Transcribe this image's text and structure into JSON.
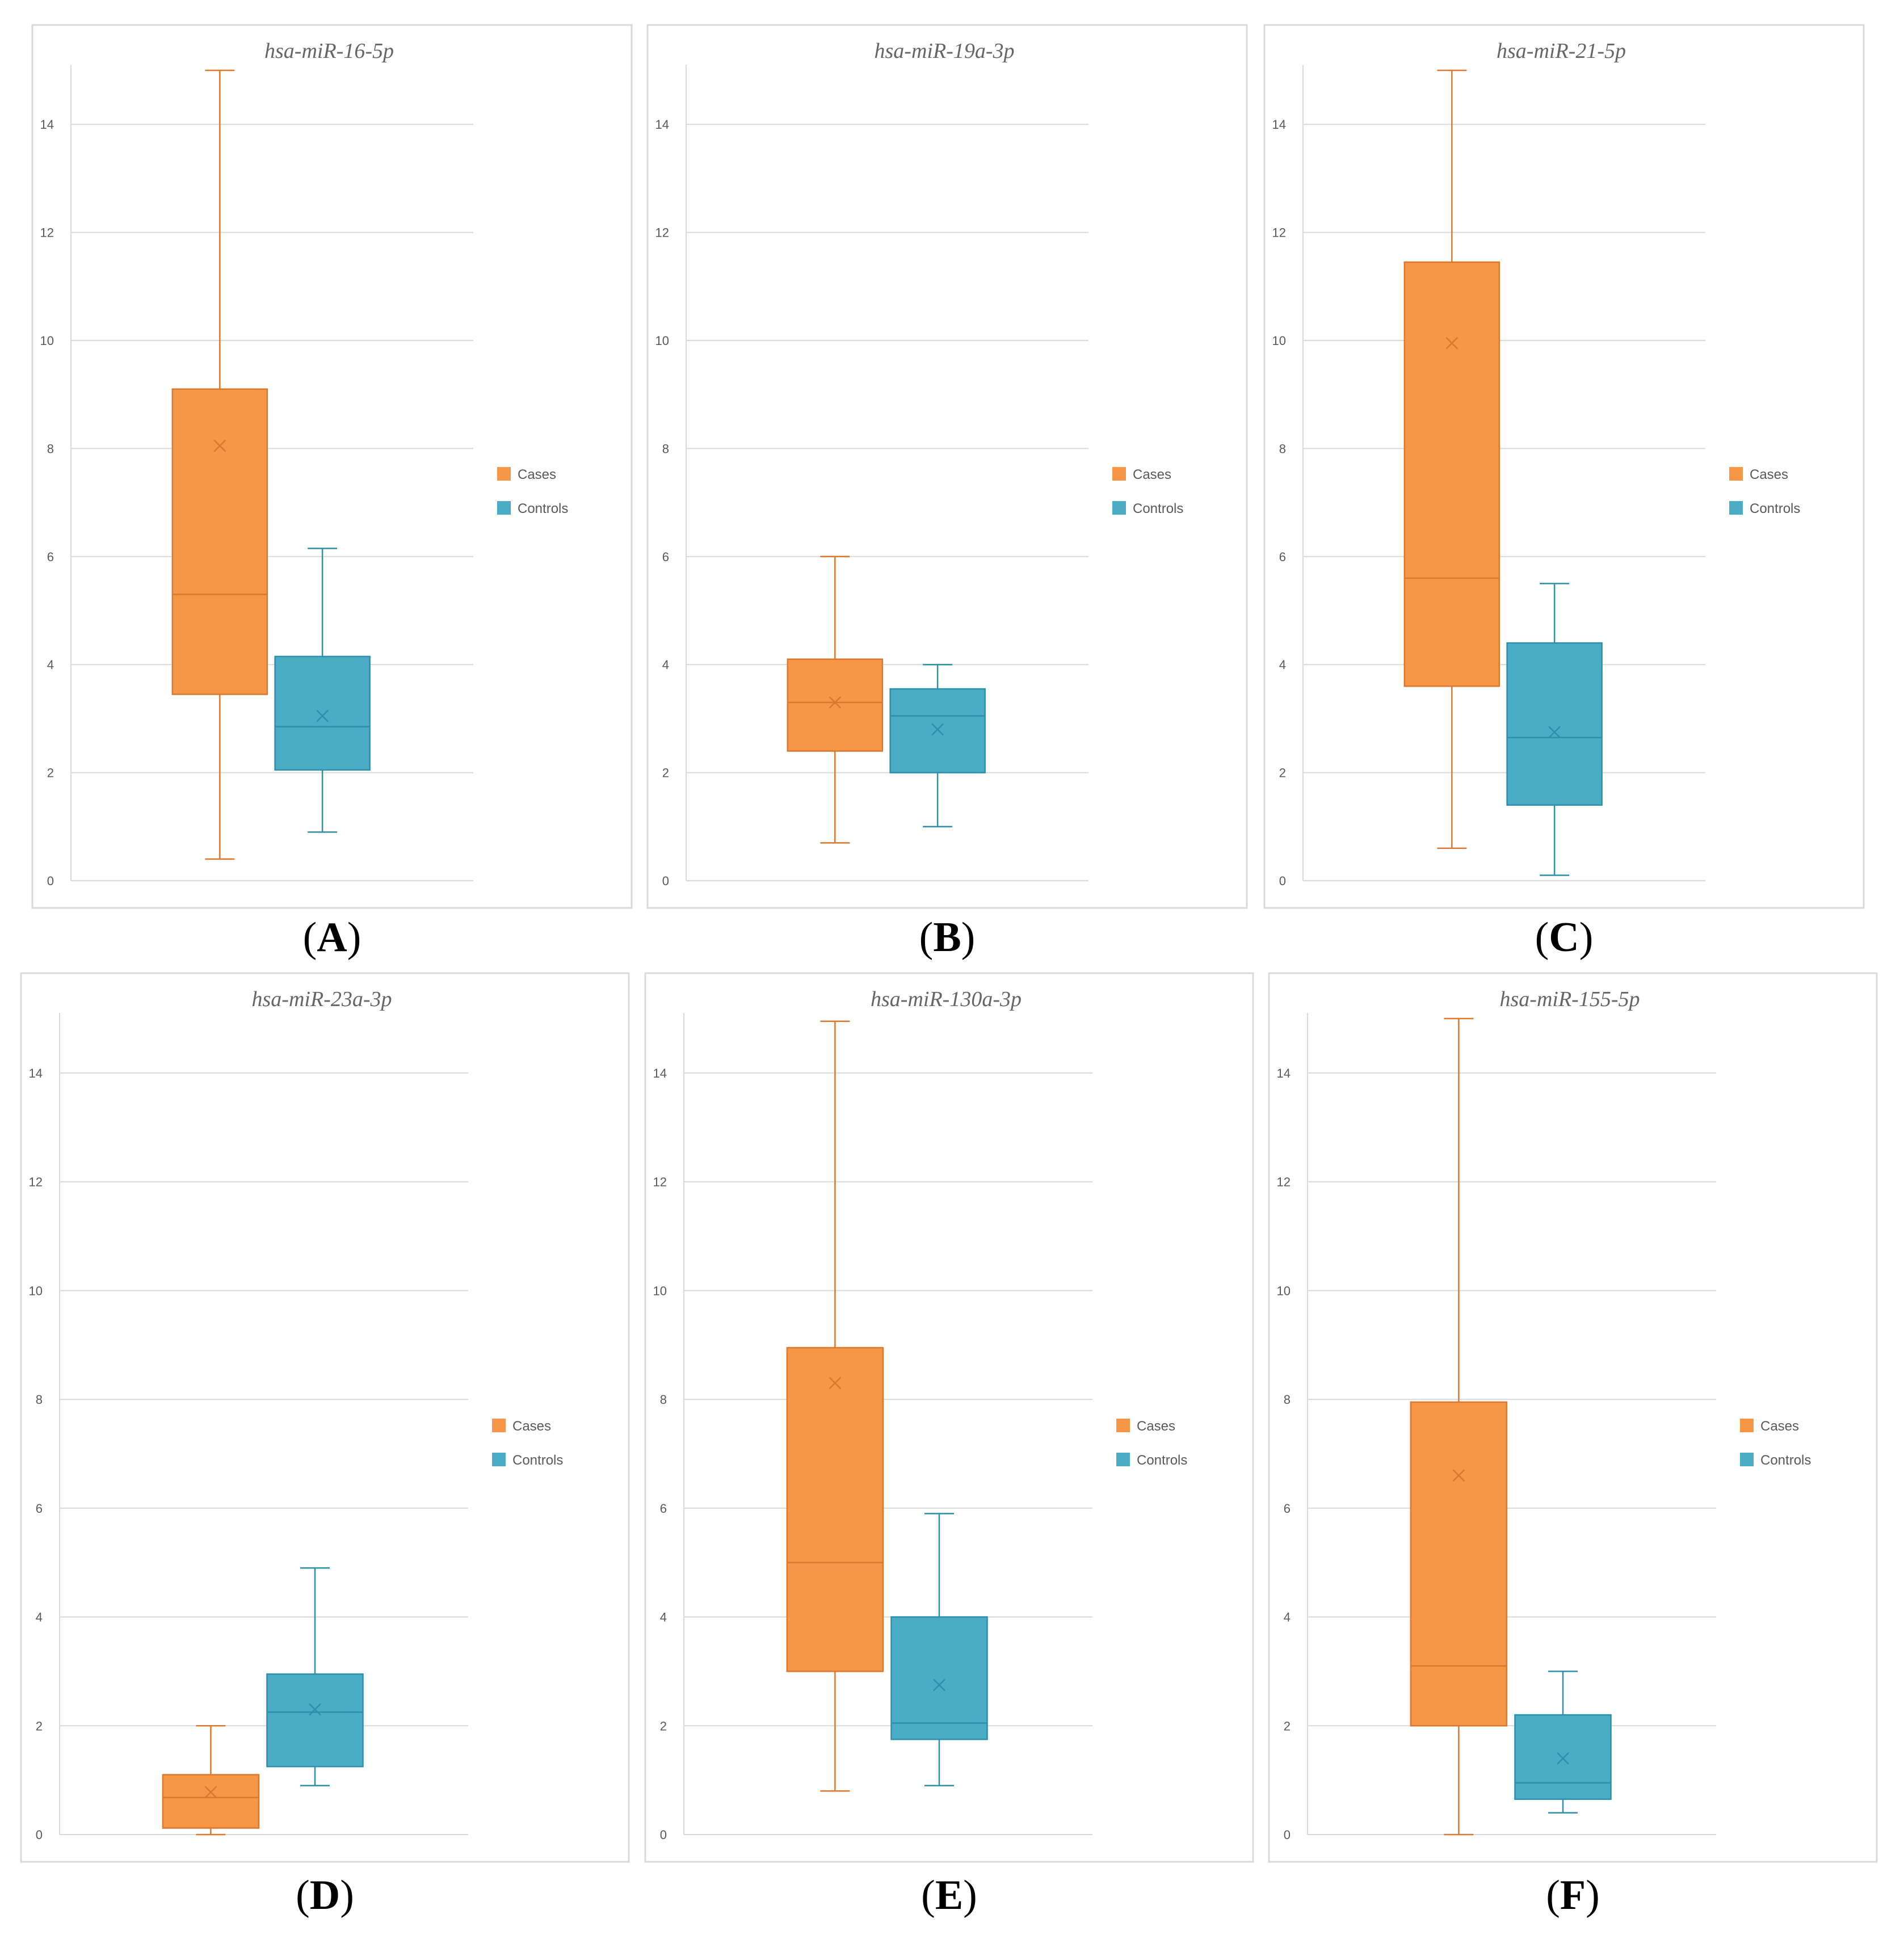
{
  "colors": {
    "cases": "#F79646",
    "cases_stroke": "#D9782E",
    "controls": "#4BACC6",
    "controls_stroke": "#2E8FAA",
    "grid": "#D9D9D9",
    "frame": "#D9D9D9"
  },
  "chart_data": [
    {
      "panel": "A",
      "type": "box",
      "title": "hsa-miR-16-5p",
      "yticks": [
        "0",
        "2",
        "4",
        "6",
        "8",
        "10",
        "12",
        "14"
      ],
      "ylim": [
        0,
        15
      ],
      "legend": [
        "Cases",
        "Controls"
      ],
      "legend_position": "right",
      "grid": true,
      "series": [
        {
          "name": "Cases",
          "min": 0.4,
          "q1": 3.45,
          "median": 5.3,
          "q3": 9.1,
          "max": 15.0,
          "mean": 8.05
        },
        {
          "name": "Controls",
          "min": 0.9,
          "q1": 2.05,
          "median": 2.85,
          "q3": 4.15,
          "max": 6.15,
          "mean": 3.05
        }
      ]
    },
    {
      "panel": "B",
      "type": "box",
      "title": "hsa-miR-19a-3p",
      "yticks": [
        "0",
        "2",
        "4",
        "6",
        "8",
        "10",
        "12",
        "14"
      ],
      "ylim": [
        0,
        15
      ],
      "legend": [
        "Cases",
        "Controls"
      ],
      "legend_position": "right",
      "grid": true,
      "series": [
        {
          "name": "Cases",
          "min": 0.7,
          "q1": 2.4,
          "median": 3.3,
          "q3": 4.1,
          "max": 6.0,
          "mean": 3.3
        },
        {
          "name": "Controls",
          "min": 1.0,
          "q1": 2.0,
          "median": 3.05,
          "q3": 3.55,
          "max": 4.0,
          "mean": 2.8
        }
      ]
    },
    {
      "panel": "C",
      "type": "box",
      "title": "hsa-miR-21-5p",
      "yticks": [
        "0",
        "2",
        "4",
        "6",
        "8",
        "10",
        "12",
        "14"
      ],
      "ylim": [
        0,
        15
      ],
      "legend": [
        "Cases",
        "Controls"
      ],
      "legend_position": "right",
      "grid": true,
      "series": [
        {
          "name": "Cases",
          "min": 0.6,
          "q1": 3.6,
          "median": 5.6,
          "q3": 11.45,
          "max": 15.0,
          "mean": 9.95
        },
        {
          "name": "Controls",
          "min": 0.1,
          "q1": 1.4,
          "median": 2.65,
          "q3": 4.4,
          "max": 5.5,
          "mean": 2.75
        }
      ]
    },
    {
      "panel": "D",
      "type": "box",
      "title": "hsa-miR-23a-3p",
      "yticks": [
        "0",
        "2",
        "4",
        "6",
        "8",
        "10",
        "12",
        "14"
      ],
      "ylim": [
        0,
        15
      ],
      "legend": [
        "Cases",
        "Controls"
      ],
      "legend_position": "right",
      "grid": true,
      "series": [
        {
          "name": "Cases",
          "min": 0.0,
          "q1": 0.12,
          "median": 0.68,
          "q3": 1.1,
          "max": 2.0,
          "mean": 0.78
        },
        {
          "name": "Controls",
          "min": 0.9,
          "q1": 1.25,
          "median": 2.25,
          "q3": 2.95,
          "max": 4.9,
          "mean": 2.3
        }
      ]
    },
    {
      "panel": "E",
      "type": "box",
      "title": "hsa-miR-130a-3p",
      "yticks": [
        "0",
        "2",
        "4",
        "6",
        "8",
        "10",
        "12",
        "14"
      ],
      "ylim": [
        0,
        15
      ],
      "legend": [
        "Cases",
        "Controls"
      ],
      "legend_position": "right",
      "grid": true,
      "series": [
        {
          "name": "Cases",
          "min": 0.8,
          "q1": 3.0,
          "median": 5.0,
          "q3": 8.95,
          "max": 14.95,
          "mean": 8.3
        },
        {
          "name": "Controls",
          "min": 0.9,
          "q1": 1.75,
          "median": 2.05,
          "q3": 4.0,
          "max": 5.9,
          "mean": 2.75
        }
      ]
    },
    {
      "panel": "F",
      "type": "box",
      "title": "hsa-miR-155-5p",
      "yticks": [
        "0",
        "2",
        "4",
        "6",
        "8",
        "10",
        "12",
        "14"
      ],
      "ylim": [
        0,
        15
      ],
      "legend": [
        "Cases",
        "Controls"
      ],
      "legend_position": "right",
      "grid": true,
      "series": [
        {
          "name": "Cases",
          "min": 0.0,
          "q1": 2.0,
          "median": 3.1,
          "q3": 7.95,
          "max": 15.0,
          "mean": 6.6
        },
        {
          "name": "Controls",
          "min": 0.4,
          "q1": 0.65,
          "median": 0.95,
          "q3": 2.2,
          "max": 3.0,
          "mean": 1.4
        }
      ]
    }
  ],
  "panel_labels": [
    "A",
    "B",
    "C",
    "D",
    "E",
    "F"
  ]
}
